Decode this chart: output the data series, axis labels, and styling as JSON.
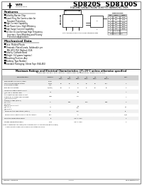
{
  "title1": "SD820S  SD8100S",
  "subtitle": "8.0A DPAK SURFACE MOUNT SCHOTTKY BARRIER RECTIFIER",
  "logo_text": "WTE",
  "features_title": "Features",
  "features": [
    "Schottky Barrier Chip",
    "Guard Ring Die Construction for",
    "  Transient Protection",
    "High Current Capability",
    "Low Power Loss, High Efficiency",
    "High Surge Current Capability",
    "For Use In Low-Voltage High Frequency",
    "  Inverters, Free Wheeling and Polarity",
    "  Protection Applications"
  ],
  "mech_title": "Mechanical Data",
  "mech_items": [
    "Case: Molded Plastic",
    "Terminals: Plated Leads, Solderable per",
    "  MIL-STD-750, Method 2026",
    "Polarity: Cathode Band",
    "Weight: 0.4 grams (approx.)",
    "Mounting Position: Any",
    "Marking: Type Number",
    "Standard Packaging: 16mm Tape (EIA-481)"
  ],
  "table_title": "Maximum Ratings and Electrical Characteristics @T=25°C unless otherwise specified",
  "table_note": "Single Phase, half wave, 60Hz, resistive or inductive load. For capacitive load, derate current by 50%",
  "bg_color": "#ffffff",
  "border_color": "#000000",
  "text_color": "#000000",
  "header_bg": "#cccccc",
  "section_bg": "#eeeeee",
  "main_cols": [
    "Characteristics",
    "Symbol",
    "SD\n820S",
    "SD\n830S",
    "SD\n840S",
    "SD\n850S",
    "SD\n860S",
    "SD\n8100S",
    "Unit"
  ],
  "dim_rows": [
    [
      "A",
      "4.40",
      "0.173"
    ],
    [
      "B",
      "6.50",
      "0.256"
    ],
    [
      "C",
      "5.30",
      "0.209"
    ],
    [
      "D",
      "2.30",
      "0.091"
    ],
    [
      "E",
      "1.70",
      "0.067"
    ],
    [
      "F",
      "0.75",
      "0.030"
    ],
    [
      "G",
      "1.00 Typical",
      ""
    ],
    [
      "H",
      "Dimensions in mm",
      ""
    ]
  ]
}
